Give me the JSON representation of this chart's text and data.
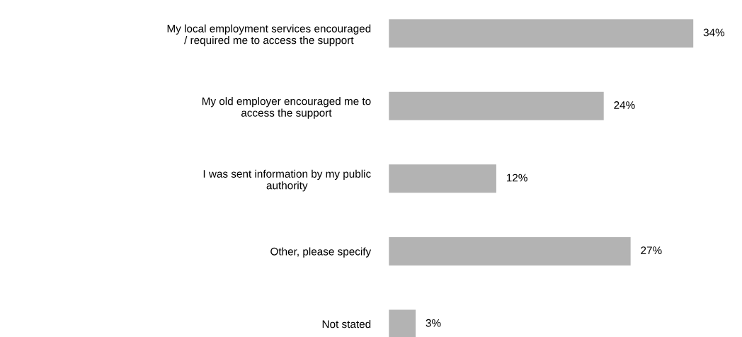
{
  "chart_data": {
    "type": "bar",
    "orientation": "horizontal",
    "categories": [
      "My local employment services encouraged\n/ required me to access the support",
      "My old employer encouraged me to\naccess the support",
      "I was sent information by my public\nauthority",
      "Other, please specify",
      "Not stated"
    ],
    "values": [
      34,
      24,
      12,
      27,
      3
    ],
    "value_labels": [
      "34%",
      "24%",
      "12%",
      "27%",
      "3%"
    ],
    "color": "#b3b3b3"
  }
}
